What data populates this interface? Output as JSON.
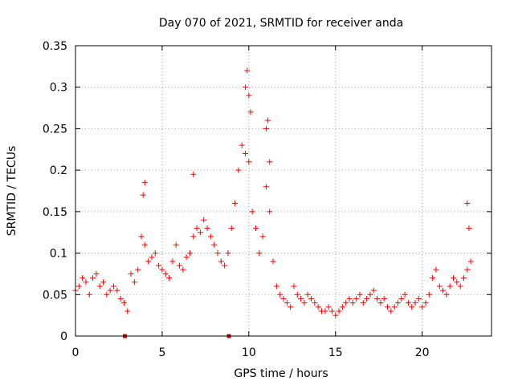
{
  "chart_data": {
    "type": "scatter",
    "title": "Day 070 of 2021, SRMTID for receiver anda",
    "xlabel": "GPS time / hours",
    "ylabel": "SRMTID / TECUs",
    "xlim": [
      0,
      24
    ],
    "ylim": [
      0,
      0.35
    ],
    "grid": true,
    "marker": "+",
    "marker_color": "#ff0000",
    "xticks": [
      0,
      5,
      10,
      15,
      20
    ],
    "xtick_labels": [
      "0",
      "5",
      "10",
      "15",
      "20"
    ],
    "yticks": [
      0,
      0.05,
      0.1,
      0.15,
      0.2,
      0.25,
      0.3,
      0.35
    ],
    "ytick_labels": [
      "0",
      "0.05",
      "0.1",
      "0.15",
      "0.2",
      "0.25",
      "0.3",
      "0.35"
    ],
    "gap_markers": [
      {
        "x": 2.85,
        "y": 0
      },
      {
        "x": 8.85,
        "y": 0
      }
    ],
    "series": [
      {
        "name": "SRMTID",
        "x": [
          0.0,
          0.2,
          0.4,
          0.6,
          0.8,
          1.0,
          1.2,
          1.4,
          1.6,
          1.8,
          2.0,
          2.2,
          2.4,
          2.6,
          2.8,
          3.0,
          3.2,
          3.4,
          3.6,
          3.8,
          4.0,
          4.2,
          4.4,
          4.6,
          4.8,
          5.0,
          5.2,
          5.4,
          5.6,
          5.8,
          6.0,
          6.2,
          6.4,
          6.6,
          6.8,
          7.0,
          7.2,
          7.4,
          7.6,
          7.8,
          8.0,
          8.2,
          8.4,
          8.6,
          8.8,
          9.0,
          9.2,
          9.4,
          9.6,
          9.8,
          10.0,
          10.2,
          10.4,
          10.6,
          10.8,
          11.0,
          11.2,
          11.4,
          11.6,
          11.8,
          12.0,
          12.2,
          12.4,
          12.6,
          12.8,
          13.0,
          13.2,
          13.4,
          13.6,
          13.8,
          14.0,
          14.2,
          14.4,
          14.6,
          14.8,
          15.0,
          15.2,
          15.4,
          15.6,
          15.8,
          16.0,
          16.2,
          16.4,
          16.6,
          16.8,
          17.0,
          17.2,
          17.4,
          17.6,
          17.8,
          18.0,
          18.2,
          18.4,
          18.6,
          18.8,
          19.0,
          19.2,
          19.4,
          19.6,
          19.8,
          20.0,
          20.2,
          20.4,
          20.6,
          20.8,
          21.0,
          21.2,
          21.4,
          21.6,
          21.8,
          22.0,
          22.2,
          22.4,
          22.6,
          22.8,
          3.9,
          4.0,
          6.8,
          9.8,
          9.9,
          10.0,
          10.1,
          11.0,
          11.1,
          11.2,
          22.6,
          22.7
        ],
        "y": [
          0.055,
          0.06,
          0.07,
          0.065,
          0.05,
          0.07,
          0.075,
          0.06,
          0.065,
          0.05,
          0.055,
          0.06,
          0.055,
          0.045,
          0.04,
          0.03,
          0.075,
          0.065,
          0.08,
          0.12,
          0.11,
          0.09,
          0.095,
          0.1,
          0.085,
          0.08,
          0.075,
          0.07,
          0.09,
          0.11,
          0.085,
          0.08,
          0.095,
          0.1,
          0.12,
          0.13,
          0.125,
          0.14,
          0.13,
          0.12,
          0.11,
          0.1,
          0.09,
          0.085,
          0.1,
          0.13,
          0.16,
          0.2,
          0.23,
          0.22,
          0.21,
          0.15,
          0.13,
          0.1,
          0.12,
          0.18,
          0.15,
          0.09,
          0.06,
          0.05,
          0.045,
          0.04,
          0.035,
          0.06,
          0.05,
          0.045,
          0.04,
          0.05,
          0.045,
          0.04,
          0.035,
          0.03,
          0.03,
          0.035,
          0.03,
          0.025,
          0.03,
          0.035,
          0.04,
          0.045,
          0.04,
          0.045,
          0.05,
          0.04,
          0.045,
          0.05,
          0.055,
          0.045,
          0.04,
          0.045,
          0.035,
          0.03,
          0.035,
          0.04,
          0.045,
          0.05,
          0.04,
          0.035,
          0.04,
          0.045,
          0.035,
          0.04,
          0.05,
          0.07,
          0.08,
          0.06,
          0.055,
          0.05,
          0.06,
          0.07,
          0.065,
          0.06,
          0.07,
          0.08,
          0.09,
          0.17,
          0.185,
          0.195,
          0.3,
          0.32,
          0.29,
          0.27,
          0.25,
          0.26,
          0.21,
          0.16,
          0.13
        ]
      }
    ]
  }
}
